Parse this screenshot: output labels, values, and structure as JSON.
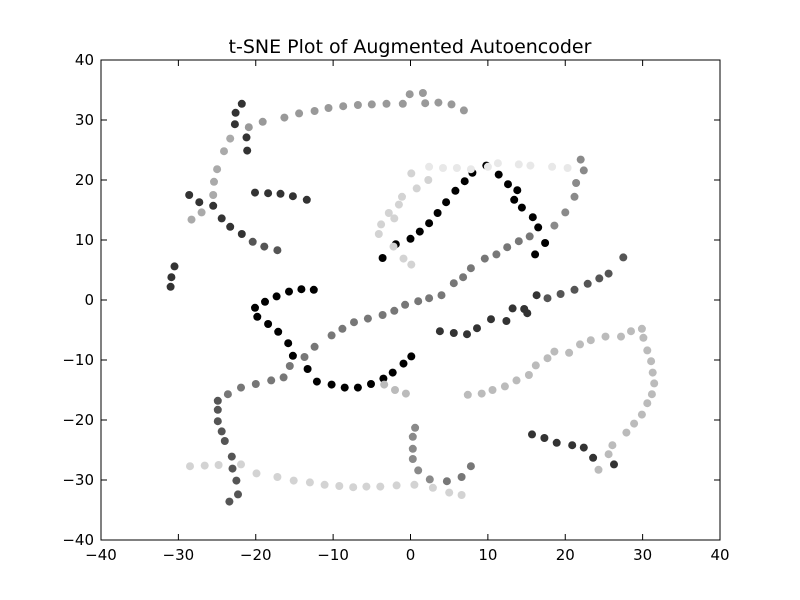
{
  "chart_data": {
    "type": "scatter",
    "title": "t-SNE Plot of Augmented Autoencoder",
    "xlabel": "",
    "ylabel": "",
    "xlim": [
      -40,
      40
    ],
    "ylim": [
      -40,
      40
    ],
    "xticks": [
      "−40",
      "−30",
      "−20",
      "−10",
      "0",
      "10",
      "20",
      "30",
      "40"
    ],
    "yticks": [
      "−40",
      "−30",
      "−20",
      "−10",
      "0",
      "10",
      "20",
      "30",
      "40"
    ],
    "grid": false,
    "legend": "none",
    "series": [
      {
        "color": "#000000",
        "points": [
          [
            -3.6,
            7
          ],
          [
            -1.9,
            9.3
          ],
          [
            0,
            10.2
          ],
          [
            1.2,
            11.4
          ],
          [
            2.4,
            12.8
          ],
          [
            3.5,
            14.5
          ],
          [
            4.6,
            16.3
          ],
          [
            5.8,
            18.2
          ],
          [
            7,
            19.8
          ],
          [
            8,
            21.2
          ],
          [
            9.8,
            22.4
          ],
          [
            11.4,
            20.9
          ],
          [
            12.6,
            19.3
          ],
          [
            13.8,
            18.3
          ],
          [
            13.4,
            16.7
          ],
          [
            14.4,
            15.4
          ],
          [
            15.8,
            13.8
          ],
          [
            16.5,
            12.1
          ],
          [
            17.4,
            9.5
          ],
          [
            16.1,
            7.6
          ],
          [
            -20.1,
            -1.3
          ],
          [
            -18.8,
            -0.3
          ],
          [
            -17.3,
            0.6
          ],
          [
            -15.7,
            1.4
          ],
          [
            -14.1,
            1.8
          ],
          [
            -12.5,
            1.7
          ],
          [
            -19.8,
            -2.8
          ],
          [
            -18.4,
            -4
          ],
          [
            -17.1,
            -5.3
          ],
          [
            -15.8,
            -7.2
          ],
          [
            -15.2,
            -9.3
          ],
          [
            -13.3,
            -11.5
          ],
          [
            -12.1,
            -13.6
          ],
          [
            -10.2,
            -14.1
          ],
          [
            -8.5,
            -14.6
          ],
          [
            -6.8,
            -14.6
          ],
          [
            -5.1,
            -14
          ],
          [
            -3.5,
            -13.1
          ],
          [
            -2.3,
            -12.1
          ],
          [
            -0.9,
            -10.6
          ],
          [
            0.1,
            -9.4
          ]
        ]
      },
      {
        "color": "#333333",
        "points": [
          [
            -31,
            2.2
          ],
          [
            -30.9,
            3.8
          ],
          [
            -30.5,
            5.6
          ],
          [
            -28.6,
            17.5
          ],
          [
            -27.3,
            16.3
          ],
          [
            -25.5,
            15.7
          ],
          [
            -24.4,
            13.6
          ],
          [
            -23.3,
            12.2
          ],
          [
            -21.8,
            11
          ],
          [
            -20.1,
            17.9
          ],
          [
            -18.4,
            17.8
          ],
          [
            -16.8,
            17.7
          ],
          [
            -15.2,
            17.3
          ],
          [
            -13.4,
            16.7
          ],
          [
            -22.7,
            29.3
          ],
          [
            -22.6,
            31.2
          ],
          [
            -21.8,
            32.7
          ],
          [
            -21.2,
            27.1
          ],
          [
            -21.1,
            24.9
          ],
          [
            15.7,
            -22.4
          ],
          [
            17.3,
            -23
          ],
          [
            18.9,
            -23.8
          ],
          [
            20.9,
            -24.2
          ],
          [
            22.4,
            -24.6
          ],
          [
            23.6,
            -26.3
          ],
          [
            26.3,
            -27.4
          ],
          [
            3.8,
            -5.2
          ],
          [
            5.6,
            -5.5
          ],
          [
            7.3,
            -5.7
          ],
          [
            8.6,
            -4.7
          ],
          [
            10.4,
            -3.2
          ],
          [
            12.4,
            -3.5
          ],
          [
            13.2,
            -1.4
          ],
          [
            14.7,
            -1.5
          ],
          [
            15.1,
            -2.2
          ],
          [
            16.3,
            0.8
          ]
        ]
      },
      {
        "color": "#555555",
        "points": [
          [
            -20.4,
            9.7
          ],
          [
            -18.9,
            8.9
          ],
          [
            -17.2,
            8.3
          ],
          [
            -24.9,
            -16.8
          ],
          [
            -24.9,
            -18.3
          ],
          [
            -24.9,
            -20.2
          ],
          [
            -24.4,
            -21.9
          ],
          [
            -24,
            -23.5
          ],
          [
            -23.1,
            -26.1
          ],
          [
            -23,
            -28.1
          ],
          [
            -22.5,
            -30.1
          ],
          [
            -22.3,
            -32.4
          ],
          [
            -23.4,
            -33.6
          ],
          [
            17.7,
            0.3
          ],
          [
            19.4,
            1
          ],
          [
            21.2,
            1.7
          ],
          [
            22.9,
            2.7
          ],
          [
            24.4,
            3.6
          ],
          [
            25.6,
            4.4
          ],
          [
            27.5,
            7.1
          ]
        ]
      },
      {
        "color": "#777777",
        "points": [
          [
            -23.6,
            -15.7
          ],
          [
            -21.9,
            -14.6
          ],
          [
            -20,
            -14
          ],
          [
            -18,
            -13.4
          ],
          [
            -16.4,
            -12.9
          ],
          [
            -15.6,
            -11
          ],
          [
            -13.7,
            -9.5
          ],
          [
            -12.4,
            -7.8
          ],
          [
            -10.2,
            -5.9
          ],
          [
            -8.8,
            -4.8
          ],
          [
            -7.3,
            -3.7
          ],
          [
            -5.5,
            -3.1
          ],
          [
            -3.6,
            -2.5
          ],
          [
            -2.1,
            -1.8
          ],
          [
            -0.7,
            -0.8
          ],
          [
            1,
            -0.2
          ],
          [
            2.4,
            0.3
          ],
          [
            4,
            0.8
          ],
          [
            5.6,
            2.8
          ],
          [
            6.8,
            3.8
          ],
          [
            7.8,
            5.3
          ],
          [
            9.6,
            6.9
          ],
          [
            11.1,
            7.6
          ],
          [
            12.5,
            8.8
          ],
          [
            14,
            9.8
          ],
          [
            15.4,
            10.6
          ],
          [
            7.8,
            -27.7
          ],
          [
            6.6,
            -29.5
          ],
          [
            4.7,
            -30.2
          ]
        ]
      },
      {
        "color": "#8a8a8a",
        "points": [
          [
            18.6,
            12.4
          ],
          [
            20,
            14.6
          ],
          [
            21.2,
            17.2
          ],
          [
            21.4,
            19.5
          ],
          [
            22.4,
            21.6
          ],
          [
            22,
            23.4
          ],
          [
            0.6,
            -21.3
          ],
          [
            0.3,
            -22.8
          ],
          [
            0.3,
            -24.8
          ],
          [
            0.3,
            -26.5
          ],
          [
            1,
            -28.4
          ],
          [
            2.5,
            -29.9
          ]
        ]
      },
      {
        "color": "#999999",
        "points": [
          [
            -20.9,
            28.8
          ],
          [
            -19.1,
            29.7
          ],
          [
            -16.3,
            30.4
          ],
          [
            -14.4,
            31.1
          ],
          [
            -12.4,
            31.5
          ],
          [
            -10.6,
            32
          ],
          [
            -8.7,
            32.3
          ],
          [
            -6.8,
            32.5
          ],
          [
            -5,
            32.6
          ],
          [
            -3.1,
            32.7
          ],
          [
            -1,
            32.7
          ],
          [
            1.9,
            32.8
          ],
          [
            3.6,
            32.9
          ],
          [
            5.3,
            32.6
          ],
          [
            6.9,
            31.6
          ],
          [
            -0.1,
            34.3
          ],
          [
            1.6,
            34.5
          ]
        ]
      },
      {
        "color": "#aaaaaa",
        "points": [
          [
            -28.3,
            13.4
          ],
          [
            -27,
            14.6
          ],
          [
            -25.5,
            17.5
          ],
          [
            -25.4,
            19.7
          ],
          [
            -25,
            21.8
          ],
          [
            -24.1,
            24.8
          ],
          [
            -23.3,
            26.9
          ]
        ]
      },
      {
        "color": "#bbbbbb",
        "points": [
          [
            -3.4,
            -14.1
          ],
          [
            -2,
            -15
          ],
          [
            -0.6,
            -15.6
          ],
          [
            7.4,
            -15.8
          ],
          [
            9.2,
            -15.6
          ],
          [
            10.6,
            -15
          ],
          [
            12.2,
            -14.4
          ],
          [
            13.7,
            -13.4
          ],
          [
            15.3,
            -12.5
          ],
          [
            16.2,
            -10.9
          ],
          [
            17.7,
            -9.7
          ],
          [
            18.6,
            -8.6
          ],
          [
            20.5,
            -8.8
          ],
          [
            21.9,
            -7.4
          ],
          [
            23.3,
            -6.7
          ],
          [
            25.2,
            -6.1
          ],
          [
            27.2,
            -6.1
          ],
          [
            28.5,
            -5.2
          ],
          [
            29.9,
            -4.8
          ],
          [
            30.1,
            -6.3
          ],
          [
            30.6,
            -8.4
          ],
          [
            31.1,
            -10.2
          ],
          [
            31.3,
            -12.1
          ],
          [
            31.5,
            -13.9
          ],
          [
            31.2,
            -15.7
          ],
          [
            30.6,
            -17.2
          ],
          [
            29.9,
            -19.1
          ],
          [
            28.9,
            -20.6
          ],
          [
            27.9,
            -22.1
          ],
          [
            26.1,
            -24.2
          ],
          [
            25.6,
            -25.7
          ],
          [
            24.3,
            -28.3
          ]
        ]
      },
      {
        "color": "#d3d3d3",
        "points": [
          [
            -28.5,
            -27.7
          ],
          [
            -26.6,
            -27.6
          ],
          [
            -24.8,
            -27.5
          ],
          [
            -21.9,
            -27.4
          ],
          [
            -19.9,
            -28.9
          ],
          [
            -17.2,
            -29.5
          ],
          [
            -15.1,
            -30.1
          ],
          [
            -13,
            -30.4
          ],
          [
            -11.1,
            -30.8
          ],
          [
            -9.2,
            -31
          ],
          [
            -7.4,
            -31.2
          ],
          [
            -5.7,
            -31.1
          ],
          [
            -3.9,
            -31.1
          ],
          [
            -1.8,
            -30.9
          ],
          [
            0.5,
            -30.8
          ],
          [
            2.9,
            -31.3
          ],
          [
            5,
            -32.1
          ],
          [
            6.6,
            -32.5
          ],
          [
            -4.1,
            11
          ],
          [
            -3.8,
            12.6
          ],
          [
            -2.8,
            14.5
          ],
          [
            -1.5,
            15.9
          ],
          [
            -2.1,
            13.6
          ],
          [
            -2.2,
            8.9
          ],
          [
            -0.9,
            6.9
          ],
          [
            0.1,
            5.9
          ],
          [
            -1.1,
            17.2
          ],
          [
            0.8,
            18.6
          ],
          [
            2.3,
            20
          ],
          [
            0.1,
            21.1
          ]
        ]
      },
      {
        "color": "#e8e8e8",
        "points": [
          [
            2.4,
            22.2
          ],
          [
            4.2,
            22
          ],
          [
            6,
            22
          ],
          [
            7.8,
            21.8
          ],
          [
            10,
            22.2
          ],
          [
            11.3,
            22.8
          ],
          [
            14,
            22.6
          ],
          [
            15.5,
            22.4
          ],
          [
            18.3,
            22.2
          ],
          [
            20.3,
            22
          ]
        ]
      }
    ]
  }
}
